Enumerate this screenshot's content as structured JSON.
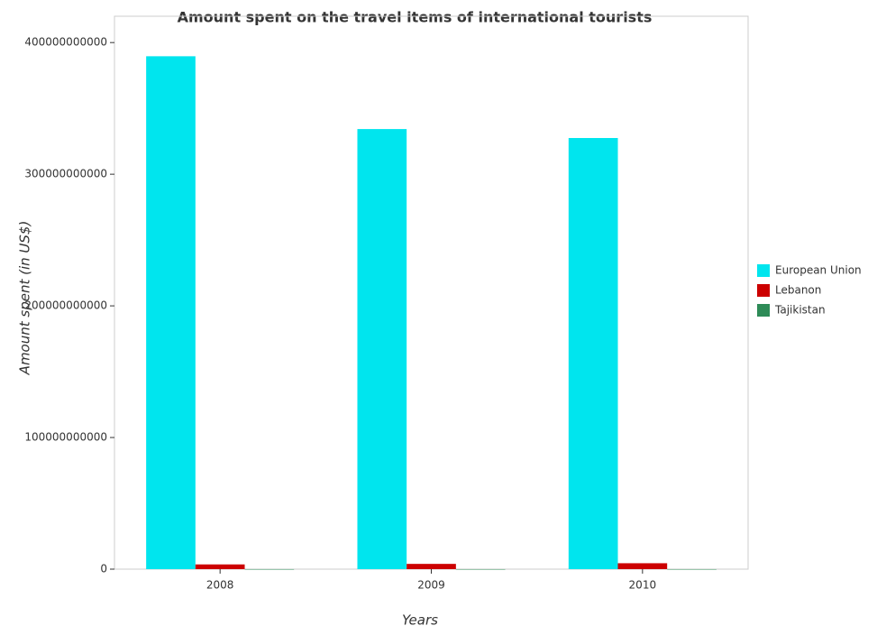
{
  "chart_data": {
    "type": "bar",
    "title": "Amount spent on the travel items of international tourists",
    "x_label": "Years",
    "y_label": "Amount spent (in US$)",
    "categories": [
      "2008",
      "2009",
      "2010"
    ],
    "series": [
      {
        "name": "European Union",
        "color": "#00e5ee",
        "values": [
          389600000000,
          334300000000,
          327500000000
        ]
      },
      {
        "name": "Lebanon",
        "color": "#cc0000",
        "values": [
          3600000000,
          4000000000,
          4500000000
        ]
      },
      {
        "name": "Tajikistan",
        "color": "#2e8b57",
        "values": [
          20000000,
          15000000,
          15000000
        ]
      }
    ],
    "ylim": [
      0,
      420000000000
    ],
    "yticks": [
      0,
      100000000000,
      200000000000,
      300000000000,
      400000000000
    ],
    "legend": "right"
  }
}
